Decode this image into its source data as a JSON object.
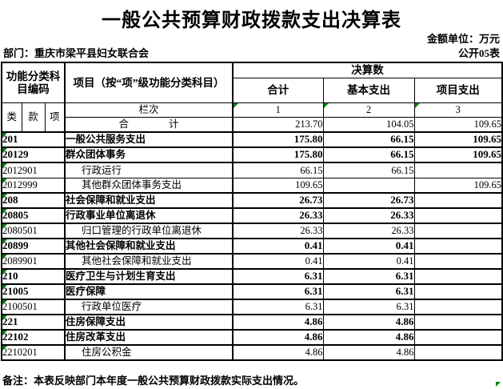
{
  "document": {
    "title": "一般公共预算财政拨款支出决算表",
    "unit_note": "金额单位：万元",
    "department": "部门：重庆市梁平县妇女联合会",
    "table_code": "公开05表",
    "footnote": "备注：本表反映部门本年度一般公共预算财政拨款实际支出情况。"
  },
  "colors": {
    "flag_green": "#008000",
    "border": "#000000",
    "background": "#ffffff"
  },
  "table": {
    "header": {
      "code_group": "功能分类科目编码",
      "code_cols": [
        "类",
        "款",
        "项"
      ],
      "item_col": "项目（按“项”级功能分类科目）",
      "amount_group": "决算数",
      "amount_cols": [
        "合计",
        "基本支出",
        "项目支出"
      ],
      "lanci_label": "栏次",
      "col_numbers": [
        "1",
        "2",
        "3"
      ],
      "total_label": "合　　　　计",
      "total_values": [
        "213.70",
        "104.05",
        "109.65"
      ]
    },
    "rows": [
      {
        "code": "201",
        "name": "一般公共服务支出",
        "total": "175.80",
        "basic": "66.15",
        "project": "109.65",
        "bold": true,
        "indent": false
      },
      {
        "code": "20129",
        "name": "群众团体事务",
        "total": "175.80",
        "basic": "66.15",
        "project": "109.65",
        "bold": true,
        "indent": false
      },
      {
        "code": "2012901",
        "name": "行政运行",
        "total": "66.15",
        "basic": "66.15",
        "project": "",
        "bold": false,
        "indent": true
      },
      {
        "code": "2012999",
        "name": "其他群众团体事务支出",
        "total": "109.65",
        "basic": "",
        "project": "109.65",
        "bold": false,
        "indent": true
      },
      {
        "code": "208",
        "name": "社会保障和就业支出",
        "total": "26.73",
        "basic": "26.73",
        "project": "",
        "bold": true,
        "indent": false
      },
      {
        "code": "20805",
        "name": "行政事业单位离退休",
        "total": "26.33",
        "basic": "26.33",
        "project": "",
        "bold": true,
        "indent": false
      },
      {
        "code": "2080501",
        "name": "归口管理的行政单位离退休",
        "total": "26.33",
        "basic": "26.33",
        "project": "",
        "bold": false,
        "indent": true
      },
      {
        "code": "20899",
        "name": "其他社会保障和就业支出",
        "total": "0.41",
        "basic": "0.41",
        "project": "",
        "bold": true,
        "indent": false
      },
      {
        "code": "2089901",
        "name": "其他社会保障和就业支出",
        "total": "0.41",
        "basic": "0.41",
        "project": "",
        "bold": false,
        "indent": true
      },
      {
        "code": "210",
        "name": "医疗卫生与计划生育支出",
        "total": "6.31",
        "basic": "6.31",
        "project": "",
        "bold": true,
        "indent": false
      },
      {
        "code": "21005",
        "name": "医疗保障",
        "total": "6.31",
        "basic": "6.31",
        "project": "",
        "bold": true,
        "indent": false
      },
      {
        "code": "2100501",
        "name": "行政单位医疗",
        "total": "6.31",
        "basic": "6.31",
        "project": "",
        "bold": false,
        "indent": true
      },
      {
        "code": "221",
        "name": "住房保障支出",
        "total": "4.86",
        "basic": "4.86",
        "project": "",
        "bold": true,
        "indent": false
      },
      {
        "code": "22102",
        "name": "住房改革支出",
        "total": "4.86",
        "basic": "4.86",
        "project": "",
        "bold": true,
        "indent": false
      },
      {
        "code": "2210201",
        "name": "住房公积金",
        "total": "4.86",
        "basic": "4.86",
        "project": "",
        "bold": false,
        "indent": true
      }
    ]
  }
}
